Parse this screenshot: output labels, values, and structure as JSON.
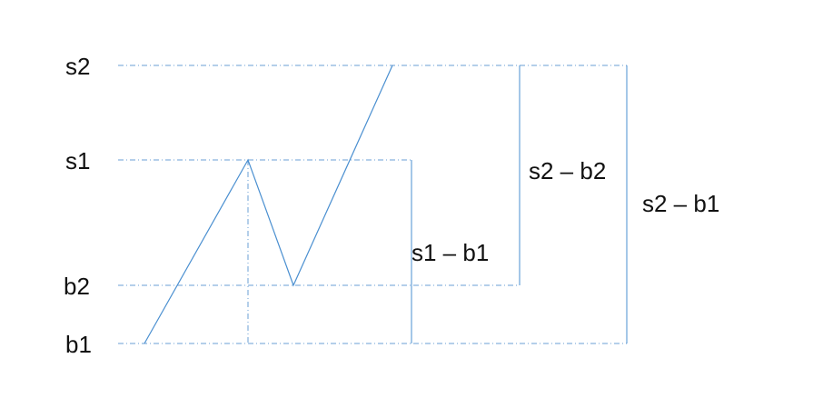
{
  "levels": {
    "s2": "s2",
    "s1": "s1",
    "b2": "b2",
    "b1": "b1"
  },
  "differences": {
    "s1_minus_b1": "s1 – b1",
    "s2_minus_b2": "s2 – b2",
    "s2_minus_b1": "s2 – b1"
  },
  "colors": {
    "line": "#4a8fd0",
    "dashed": "#6a9fd6",
    "text": "#111111"
  }
}
